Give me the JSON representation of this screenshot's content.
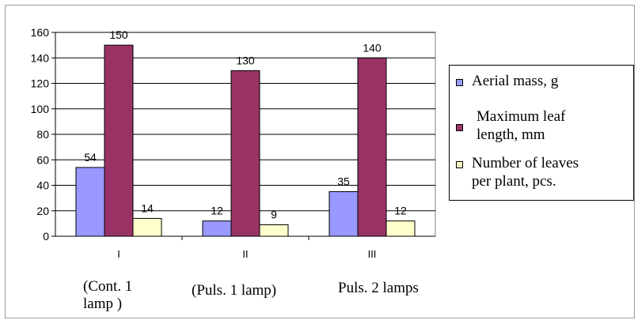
{
  "chart_data": {
    "type": "bar",
    "categories": [
      "I",
      "II",
      "III"
    ],
    "category_descriptions": [
      "(Cont. 1\nlamp )",
      "(Puls. 1 lamp)",
      "Puls. 2 lamps"
    ],
    "series": [
      {
        "name": "Aerial mass, g",
        "values": [
          54,
          12,
          35
        ],
        "color": "#9999ff"
      },
      {
        "name": "Maximum leaf length, mm",
        "values": [
          150,
          130,
          140
        ],
        "color": "#993366"
      },
      {
        "name": "Number of leaves per plant, pcs.",
        "values": [
          14,
          9,
          12
        ],
        "color": "#ffffcc"
      }
    ],
    "ylim": [
      0,
      160
    ],
    "yticks": [
      0,
      20,
      40,
      60,
      80,
      100,
      120,
      140,
      160
    ],
    "grid": true,
    "legend": "right",
    "plot_background": "#ffffff"
  },
  "legend_labels": {
    "s0": "Aerial mass, g",
    "s1_line1": "Maximum leaf",
    "s1_line2": "length, mm",
    "s2_line1": "Number of leaves",
    "s2_line2": "per plant, pcs."
  },
  "cat_desc": {
    "c0_line1": "(Cont. 1",
    "c0_line2": "lamp )",
    "c1": "(Puls. 1 lamp)",
    "c2": "Puls. 2 lamps"
  }
}
